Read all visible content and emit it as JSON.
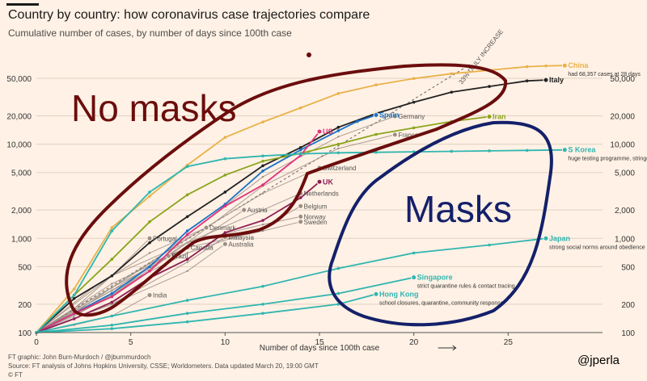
{
  "header": {
    "title": "Country by country: how coronavirus case trajectories compare",
    "subtitle": "Cumulative number of cases, by number of days since 100th case"
  },
  "footer": {
    "line1": "FT graphic: John Burn-Murdoch / @jburnmurdoch",
    "line2": "Source: FT analysis of Johns Hopkins University, CSSE; Worldometers. Data updated March 20, 19:00 GMT",
    "line3": "© FT"
  },
  "handle": "@jperla",
  "annotations": {
    "no_masks": "No masks",
    "masks": "Masks",
    "reference": "33% DAILY INCREASE"
  },
  "colors": {
    "background": "#fff1e5",
    "grid": "#e0d1c1",
    "marker": "#6b0d0d",
    "masks_marker": "#14206a",
    "china": "#e8b24a",
    "us": "#e0327c",
    "spain": "#1c73c5",
    "italy": "#222222",
    "iran": "#8aa51c",
    "uk": "#8e1e54",
    "skorea": "#30b6b0",
    "japan": "#30b6b0",
    "singapore": "#30b6b0",
    "hongkong": "#30b6b0",
    "others": "#9c8e84"
  },
  "chart_data": {
    "type": "line",
    "title": "Country by country: how coronavirus case trajectories compare",
    "subtitle": "Cumulative number of cases, by number of days since 100th case",
    "xlabel": "Number of days since 100th case",
    "ylabel": "",
    "xlim": [
      0,
      30
    ],
    "ylim": [
      100,
      70000
    ],
    "yscale": "log",
    "x_ticks": [
      0,
      5,
      10,
      15,
      20,
      25
    ],
    "y_ticks": [
      100,
      200,
      500,
      1000,
      2000,
      5000,
      10000,
      20000,
      50000
    ],
    "y_tick_labels": [
      "100",
      "200",
      "500",
      "1,000",
      "2,000",
      "5,000",
      "10,000",
      "20,000",
      "50,000"
    ],
    "grid": true,
    "reference_line": {
      "label": "33% DAILY INCREASE",
      "start": [
        0,
        100
      ],
      "daily_growth": 1.33
    },
    "series": [
      {
        "name": "China",
        "note": "had 68,357 cases at 28 days",
        "color": "china",
        "highlight": true,
        "x": [
          0,
          2,
          4,
          6,
          8,
          10,
          12,
          14,
          16,
          18,
          20,
          22,
          24,
          26,
          27,
          28
        ],
        "y": [
          100,
          290,
          1300,
          2800,
          6000,
          11800,
          17200,
          24300,
          34500,
          42600,
          49800,
          56000,
          61000,
          66500,
          67800,
          68357
        ]
      },
      {
        "name": "Italy",
        "color": "italy",
        "highlight": true,
        "x": [
          0,
          2,
          4,
          6,
          8,
          10,
          12,
          14,
          16,
          18,
          20,
          22,
          24,
          26,
          27
        ],
        "y": [
          100,
          230,
          400,
          900,
          1700,
          3100,
          5900,
          9200,
          15100,
          21200,
          27900,
          35700,
          41000,
          47000,
          48000
        ]
      },
      {
        "name": "Iran",
        "color": "iran",
        "highlight": true,
        "x": [
          0,
          2,
          4,
          6,
          8,
          10,
          12,
          14,
          16,
          18,
          20,
          22,
          24
        ],
        "y": [
          100,
          250,
          600,
          1500,
          2900,
          4700,
          6600,
          8000,
          10000,
          12700,
          14900,
          17400,
          19600
        ]
      },
      {
        "name": "Spain",
        "color": "spain",
        "highlight": true,
        "x": [
          0,
          2,
          4,
          6,
          8,
          10,
          12,
          14,
          16,
          17,
          18
        ],
        "y": [
          100,
          160,
          260,
          500,
          1200,
          2300,
          5200,
          8700,
          13900,
          17400,
          20400
        ]
      },
      {
        "name": "US",
        "color": "us",
        "highlight": true,
        "x": [
          0,
          2,
          4,
          6,
          8,
          10,
          12,
          14,
          15
        ],
        "y": [
          100,
          160,
          240,
          450,
          1100,
          2200,
          3700,
          7600,
          13600
        ]
      },
      {
        "name": "UK",
        "color": "uk",
        "highlight": true,
        "x": [
          0,
          2,
          4,
          6,
          8,
          10,
          12,
          14,
          15
        ],
        "y": [
          100,
          140,
          210,
          380,
          600,
          1150,
          1550,
          2700,
          3983
        ]
      },
      {
        "name": "S Korea",
        "note": "huge testing programme, stringent case isolation",
        "color": "skorea",
        "highlight": true,
        "x": [
          0,
          2,
          4,
          6,
          8,
          10,
          12,
          14,
          16,
          18,
          20,
          22,
          24,
          26,
          28
        ],
        "y": [
          100,
          250,
          1200,
          3100,
          5800,
          7000,
          7500,
          7900,
          8100,
          8200,
          8300,
          8400,
          8500,
          8600,
          8700
        ]
      },
      {
        "name": "Japan",
        "note": "strong social norms around obedience and mask-wearing",
        "color": "japan",
        "highlight": true,
        "x": [
          0,
          4,
          8,
          12,
          16,
          20,
          24,
          27
        ],
        "y": [
          100,
          150,
          220,
          310,
          480,
          700,
          850,
          1000
        ]
      },
      {
        "name": "Singapore",
        "note": "strict quarantine rules & contact tracing",
        "color": "singapore",
        "highlight": true,
        "x": [
          0,
          4,
          8,
          12,
          16,
          20
        ],
        "y": [
          100,
          120,
          160,
          200,
          260,
          385
        ]
      },
      {
        "name": "Hong Kong",
        "note": "school closures, quarantine, community response",
        "color": "hongkong",
        "highlight": true,
        "x": [
          0,
          4,
          8,
          12,
          16,
          18
        ],
        "y": [
          100,
          110,
          130,
          160,
          200,
          256
        ]
      },
      {
        "name": "Germany",
        "color": "others",
        "x": [
          0,
          4,
          8,
          12,
          16,
          19
        ],
        "y": [
          100,
          240,
          1100,
          4500,
          12000,
          19800
        ]
      },
      {
        "name": "France",
        "color": "others",
        "x": [
          0,
          4,
          8,
          12,
          16,
          19
        ],
        "y": [
          100,
          280,
          900,
          3600,
          9000,
          12600
        ]
      },
      {
        "name": "Switzerland",
        "color": "others",
        "x": [
          0,
          4,
          8,
          12,
          15
        ],
        "y": [
          100,
          300,
          1000,
          3000,
          5600
        ]
      },
      {
        "name": "Netherlands",
        "color": "others",
        "x": [
          0,
          4,
          8,
          12,
          14
        ],
        "y": [
          100,
          250,
          900,
          2000,
          3000
        ]
      },
      {
        "name": "Belgium",
        "color": "others",
        "x": [
          0,
          4,
          8,
          12,
          14
        ],
        "y": [
          100,
          280,
          700,
          1300,
          2200
        ]
      },
      {
        "name": "Austria",
        "color": "others",
        "x": [
          0,
          4,
          8,
          11
        ],
        "y": [
          100,
          300,
          800,
          2000
        ]
      },
      {
        "name": "Norway",
        "color": "others",
        "x": [
          0,
          4,
          8,
          12,
          14
        ],
        "y": [
          100,
          400,
          900,
          1400,
          1700
        ]
      },
      {
        "name": "Sweden",
        "color": "others",
        "x": [
          0,
          4,
          8,
          12,
          14
        ],
        "y": [
          100,
          330,
          800,
          1200,
          1500
        ]
      },
      {
        "name": "Denmark",
        "color": "others",
        "x": [
          0,
          3,
          6,
          9
        ],
        "y": [
          100,
          300,
          700,
          1300
        ]
      },
      {
        "name": "Portugal",
        "color": "others",
        "x": [
          0,
          2,
          4,
          6
        ],
        "y": [
          100,
          180,
          400,
          1000
        ]
      },
      {
        "name": "Canada",
        "color": "others",
        "x": [
          0,
          2,
          4,
          6,
          8
        ],
        "y": [
          100,
          160,
          300,
          540,
          800
        ]
      },
      {
        "name": "Malaysia",
        "color": "others",
        "x": [
          0,
          4,
          8,
          10
        ],
        "y": [
          100,
          200,
          560,
          1030
        ]
      },
      {
        "name": "Australia",
        "color": "others",
        "x": [
          0,
          4,
          8,
          10
        ],
        "y": [
          100,
          200,
          450,
          870
        ]
      },
      {
        "name": "Brazil",
        "color": "others",
        "x": [
          0,
          2,
          4,
          6,
          7
        ],
        "y": [
          100,
          150,
          250,
          450,
          650
        ]
      },
      {
        "name": "India",
        "color": "others",
        "x": [
          0,
          2,
          4,
          6
        ],
        "y": [
          100,
          120,
          150,
          250
        ]
      }
    ]
  }
}
